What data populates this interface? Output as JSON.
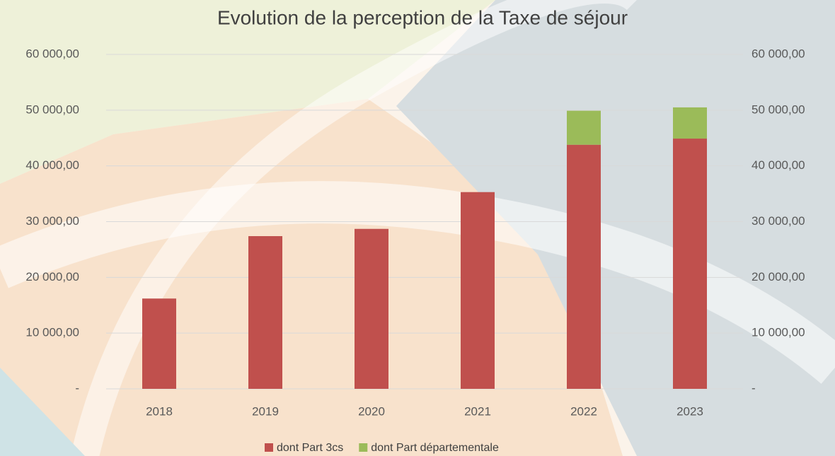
{
  "chart_data": {
    "type": "stacked_bar",
    "title": "Evolution de la perception de la Taxe de séjour",
    "categories": [
      "2018",
      "2019",
      "2020",
      "2021",
      "2022",
      "2023"
    ],
    "series": [
      {
        "name": "dont Part 3cs",
        "color": "#c0504d",
        "values": [
          16200,
          27400,
          28700,
          35300,
          43800,
          44900
        ]
      },
      {
        "name": "dont Part départementale",
        "color": "#9bbb59",
        "values": [
          0,
          0,
          0,
          0,
          6100,
          5600
        ]
      }
    ],
    "ylim": [
      0,
      60000
    ],
    "yticks": [
      {
        "value": 0,
        "label": "-"
      },
      {
        "value": 10000,
        "label": "10 000,00"
      },
      {
        "value": 20000,
        "label": "20 000,00"
      },
      {
        "value": 30000,
        "label": "30 000,00"
      },
      {
        "value": 40000,
        "label": "40 000,00"
      },
      {
        "value": 50000,
        "label": "50 000,00"
      },
      {
        "value": 60000,
        "label": "60 000,00"
      }
    ],
    "y2lim": [
      0,
      60000
    ],
    "y2ticks": [
      {
        "value": 0,
        "label": "-"
      },
      {
        "value": 10000,
        "label": "10 000,00"
      },
      {
        "value": 20000,
        "label": "20 000,00"
      },
      {
        "value": 30000,
        "label": "30 000,00"
      },
      {
        "value": 40000,
        "label": "40 000,00"
      },
      {
        "value": 50000,
        "label": "50 000,00"
      },
      {
        "value": 60000,
        "label": "60 000,00"
      }
    ],
    "grid": true,
    "legend": "bottom"
  }
}
